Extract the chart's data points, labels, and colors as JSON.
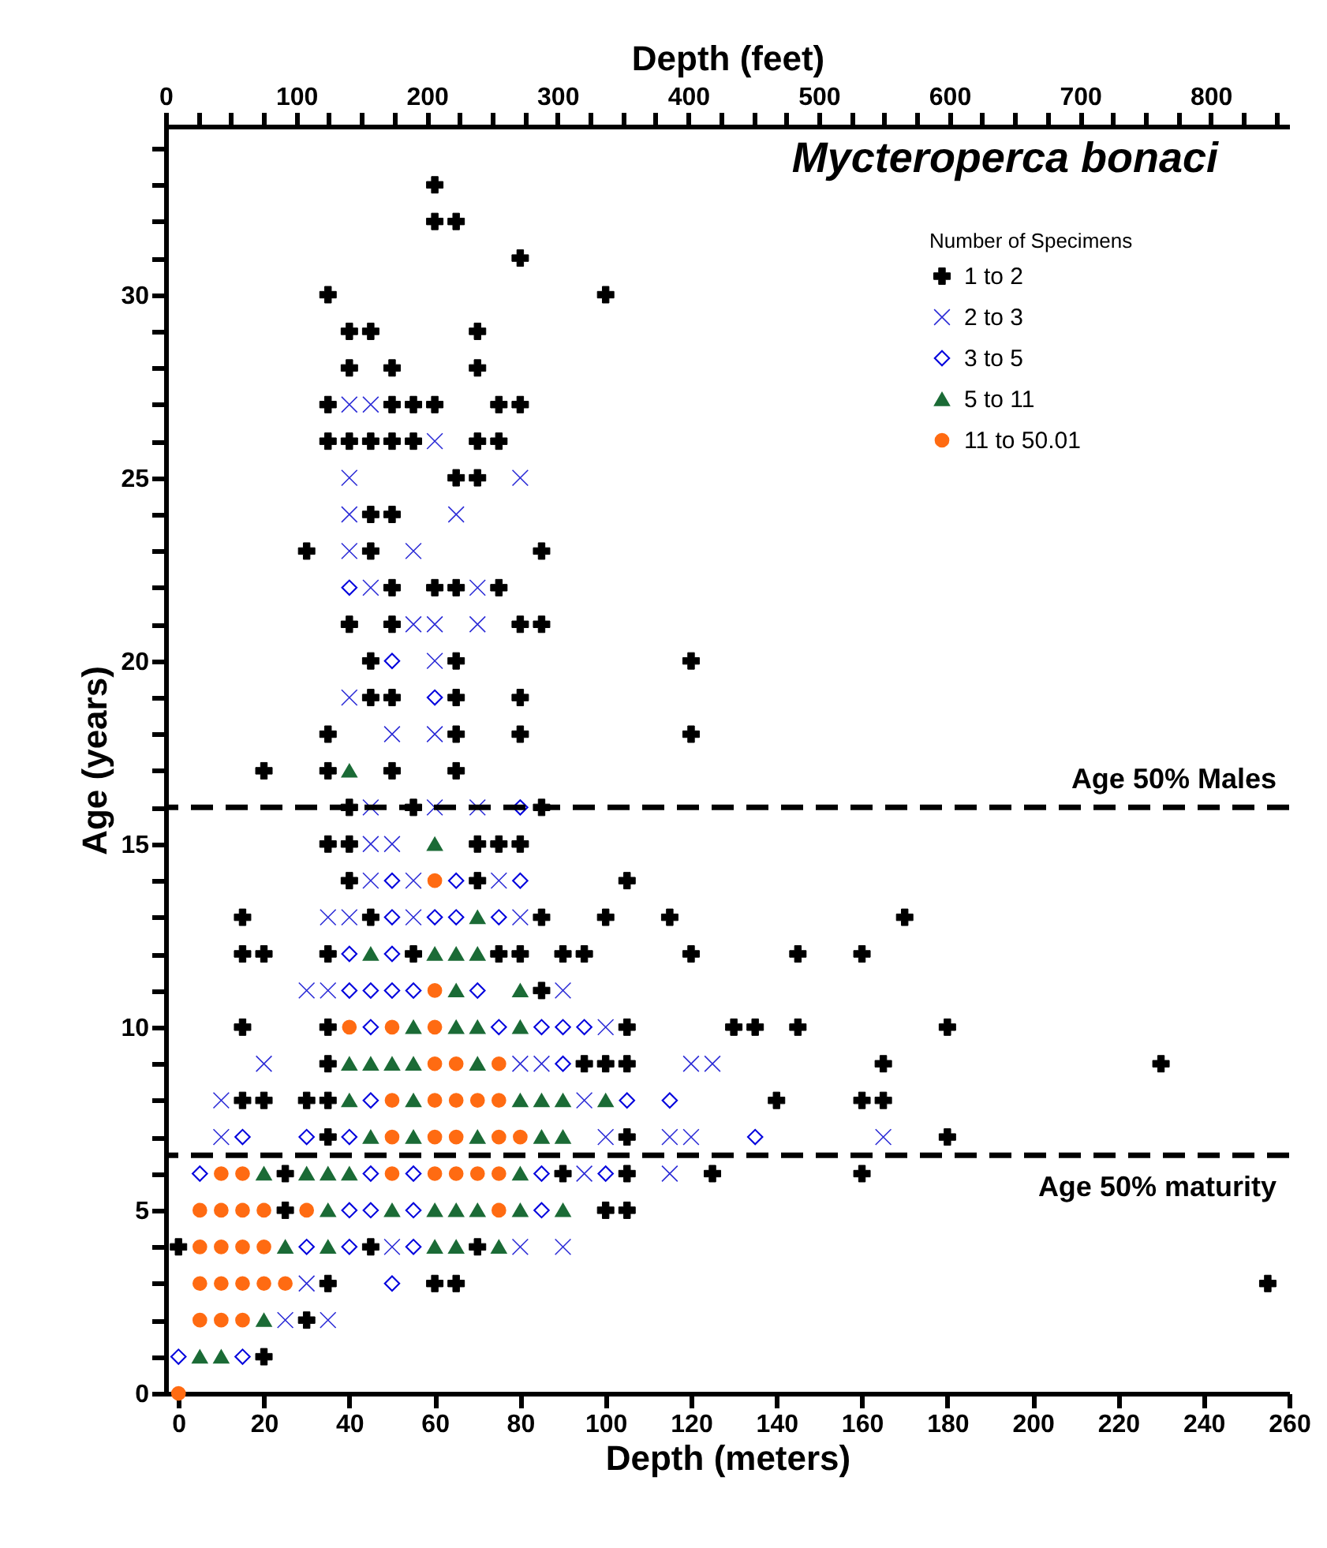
{
  "chart_data": {
    "type": "scatter",
    "title": "Mycteroperca bonaci",
    "xlabel": "Depth (meters)",
    "ylabel": "Age (years)",
    "x2label": "Depth (feet)",
    "legend_title": "Number of Specimens",
    "legend": "top right",
    "grid": false,
    "xlim": [
      -3,
      260
    ],
    "xticks": [
      0,
      20,
      40,
      60,
      80,
      100,
      120,
      140,
      160,
      180,
      200,
      220,
      240,
      260
    ],
    "x2lim": [
      0,
      860
    ],
    "x2ticks": [
      0,
      {
        "value": 25,
        "label": null
      },
      {
        "value": 50,
        "label": null
      },
      {
        "value": 75,
        "label": null
      },
      100,
      {
        "value": 125,
        "label": null
      },
      {
        "value": 150,
        "label": null
      },
      {
        "value": 175,
        "label": null
      },
      200,
      {
        "value": 225,
        "label": null
      },
      {
        "value": 250,
        "label": null
      },
      {
        "value": 275,
        "label": null
      },
      300,
      {
        "value": 325,
        "label": null
      },
      {
        "value": 350,
        "label": null
      },
      {
        "value": 375,
        "label": null
      },
      400,
      {
        "value": 425,
        "label": null
      },
      {
        "value": 450,
        "label": null
      },
      {
        "value": 475,
        "label": null
      },
      500,
      {
        "value": 525,
        "label": null
      },
      {
        "value": 550,
        "label": null
      },
      {
        "value": 575,
        "label": null
      },
      600,
      {
        "value": 625,
        "label": null
      },
      {
        "value": 650,
        "label": null
      },
      {
        "value": 675,
        "label": null
      },
      700,
      {
        "value": 725,
        "label": null
      },
      {
        "value": 750,
        "label": null
      },
      {
        "value": 775,
        "label": null
      },
      800,
      {
        "value": 825,
        "label": null
      },
      {
        "value": 850,
        "label": null
      }
    ],
    "ylim": [
      0,
      34.6
    ],
    "yticks": [
      0,
      {
        "value": 1,
        "label": null
      },
      {
        "value": 2,
        "label": null
      },
      {
        "value": 3,
        "label": null
      },
      {
        "value": 4,
        "label": null
      },
      5,
      {
        "value": 6,
        "label": null
      },
      {
        "value": 7,
        "label": null
      },
      {
        "value": 8,
        "label": null
      },
      {
        "value": 9,
        "label": null
      },
      10,
      {
        "value": 11,
        "label": null
      },
      {
        "value": 12,
        "label": null
      },
      {
        "value": 13,
        "label": null
      },
      {
        "value": 14,
        "label": null
      },
      15,
      {
        "value": 16,
        "label": null
      },
      {
        "value": 17,
        "label": null
      },
      {
        "value": 18,
        "label": null
      },
      {
        "value": 19,
        "label": null
      },
      20,
      {
        "value": 21,
        "label": null
      },
      {
        "value": 22,
        "label": null
      },
      {
        "value": 23,
        "label": null
      },
      {
        "value": 24,
        "label": null
      },
      25,
      {
        "value": 26,
        "label": null
      },
      {
        "value": 27,
        "label": null
      },
      {
        "value": 28,
        "label": null
      },
      {
        "value": 29,
        "label": null
      },
      30,
      {
        "value": 31,
        "label": null
      },
      {
        "value": 32,
        "label": null
      },
      {
        "value": 33,
        "label": null
      },
      {
        "value": 34,
        "label": null
      }
    ],
    "ref_lines": [
      {
        "axis": "y",
        "value": 16,
        "label": "Age 50% Males",
        "line_style": "dashed",
        "color": "#000000"
      },
      {
        "axis": "y",
        "value": 6.5,
        "label": "Age 50% maturity",
        "line_style": "dashed",
        "color": "#000000"
      }
    ],
    "series": [
      {
        "name": "1 to 2",
        "color": "#000000",
        "marker": "plus",
        "x": [
          20,
          30,
          35,
          60,
          65,
          255,
          0,
          45,
          70,
          25,
          100,
          105,
          25,
          90,
          105,
          125,
          160,
          35,
          105,
          180,
          15,
          20,
          30,
          35,
          140,
          160,
          165,
          35,
          95,
          100,
          105,
          165,
          230,
          15,
          35,
          105,
          130,
          135,
          145,
          180,
          85,
          15,
          20,
          35,
          55,
          75,
          80,
          90,
          95,
          120,
          145,
          160,
          15,
          45,
          85,
          100,
          115,
          170,
          40,
          70,
          105,
          35,
          40,
          70,
          75,
          80,
          40,
          55,
          85,
          20,
          35,
          50,
          65,
          35,
          65,
          80,
          120,
          45,
          50,
          65,
          80,
          45,
          65,
          120,
          40,
          50,
          80,
          85,
          50,
          60,
          65,
          75,
          30,
          45,
          85,
          45,
          50,
          65,
          70,
          35,
          40,
          45,
          50,
          55,
          70,
          75,
          35,
          50,
          55,
          60,
          75,
          80,
          40,
          50,
          70,
          40,
          45,
          70,
          35,
          100,
          80,
          60,
          65,
          60
        ],
        "values": [
          1,
          2,
          3,
          3,
          3,
          3,
          4,
          4,
          4,
          5,
          5,
          5,
          6,
          6,
          6,
          6,
          6,
          7,
          7,
          7,
          8,
          8,
          8,
          8,
          8,
          8,
          8,
          9,
          9,
          9,
          9,
          9,
          9,
          10,
          10,
          10,
          10,
          10,
          10,
          10,
          11,
          12,
          12,
          12,
          12,
          12,
          12,
          12,
          12,
          12,
          12,
          12,
          13,
          13,
          13,
          13,
          13,
          13,
          14,
          14,
          14,
          15,
          15,
          15,
          15,
          15,
          16,
          16,
          16,
          17,
          17,
          17,
          17,
          18,
          18,
          18,
          18,
          19,
          19,
          19,
          19,
          20,
          20,
          20,
          21,
          21,
          21,
          21,
          22,
          22,
          22,
          22,
          23,
          23,
          23,
          24,
          24,
          25,
          25,
          26,
          26,
          26,
          26,
          26,
          26,
          26,
          27,
          27,
          27,
          27,
          27,
          27,
          28,
          28,
          28,
          29,
          29,
          29,
          30,
          30,
          31,
          32,
          32,
          33
        ]
      },
      {
        "name": "2 to 3",
        "color": "#2a2ad6",
        "marker": "cross",
        "x": [
          25,
          35,
          30,
          50,
          80,
          90,
          95,
          115,
          10,
          100,
          115,
          120,
          165,
          10,
          95,
          20,
          80,
          85,
          120,
          125,
          100,
          30,
          35,
          90,
          35,
          40,
          55,
          80,
          45,
          55,
          75,
          45,
          50,
          45,
          60,
          70,
          50,
          60,
          40,
          60,
          55,
          60,
          70,
          45,
          70,
          40,
          55,
          40,
          65,
          40,
          80,
          60,
          40,
          45
        ],
        "values": [
          2,
          2,
          3,
          4,
          4,
          4,
          6,
          6,
          7,
          7,
          7,
          7,
          7,
          8,
          8,
          9,
          9,
          9,
          9,
          9,
          10,
          11,
          11,
          11,
          13,
          13,
          13,
          13,
          14,
          14,
          14,
          15,
          15,
          16,
          16,
          16,
          18,
          18,
          19,
          20,
          21,
          21,
          21,
          22,
          22,
          23,
          23,
          24,
          24,
          25,
          25,
          26,
          27,
          27
        ]
      },
      {
        "name": "3 to 5",
        "color": "#0000dd",
        "marker": "diamond",
        "x": [
          0,
          15,
          50,
          30,
          40,
          55,
          40,
          45,
          55,
          85,
          5,
          45,
          55,
          85,
          100,
          15,
          30,
          40,
          135,
          45,
          105,
          115,
          90,
          45,
          75,
          85,
          90,
          95,
          40,
          45,
          50,
          55,
          70,
          40,
          50,
          50,
          60,
          65,
          75,
          50,
          65,
          80,
          80,
          60,
          50,
          40
        ],
        "values": [
          1,
          1,
          3,
          4,
          4,
          4,
          5,
          5,
          5,
          5,
          6,
          6,
          6,
          6,
          6,
          7,
          7,
          7,
          7,
          8,
          8,
          8,
          9,
          10,
          10,
          10,
          10,
          10,
          11,
          11,
          11,
          11,
          11,
          12,
          12,
          13,
          13,
          13,
          13,
          14,
          14,
          14,
          16,
          19,
          20,
          22
        ]
      },
      {
        "name": "5 to 11",
        "color": "#1b6b36",
        "marker": "triangle",
        "x": [
          5,
          10,
          20,
          25,
          35,
          60,
          65,
          75,
          35,
          50,
          60,
          65,
          70,
          80,
          90,
          20,
          30,
          35,
          40,
          80,
          45,
          55,
          70,
          85,
          90,
          40,
          55,
          80,
          85,
          90,
          100,
          40,
          45,
          50,
          55,
          70,
          55,
          65,
          70,
          80,
          65,
          80,
          45,
          60,
          65,
          70,
          70,
          60,
          40
        ],
        "values": [
          1,
          1,
          2,
          4,
          4,
          4,
          4,
          4,
          5,
          5,
          5,
          5,
          5,
          5,
          5,
          6,
          6,
          6,
          6,
          6,
          7,
          7,
          7,
          7,
          7,
          8,
          8,
          8,
          8,
          8,
          8,
          9,
          9,
          9,
          9,
          9,
          10,
          10,
          10,
          10,
          11,
          11,
          12,
          12,
          12,
          12,
          13,
          15,
          17
        ]
      },
      {
        "name": "11 to 50.01",
        "color": "#ff6b12",
        "marker": "circle",
        "x": [
          0,
          5,
          10,
          15,
          5,
          10,
          15,
          20,
          25,
          5,
          10,
          15,
          20,
          5,
          10,
          15,
          20,
          30,
          75,
          10,
          15,
          50,
          60,
          65,
          70,
          75,
          50,
          60,
          65,
          75,
          80,
          50,
          60,
          65,
          70,
          75,
          60,
          65,
          75,
          40,
          50,
          60,
          60,
          60
        ],
        "values": [
          0,
          2,
          2,
          2,
          3,
          3,
          3,
          3,
          3,
          4,
          4,
          4,
          4,
          5,
          5,
          5,
          5,
          5,
          5,
          6,
          6,
          6,
          6,
          6,
          6,
          6,
          7,
          7,
          7,
          7,
          7,
          8,
          8,
          8,
          8,
          8,
          9,
          9,
          9,
          10,
          10,
          10,
          11,
          14
        ]
      }
    ]
  }
}
